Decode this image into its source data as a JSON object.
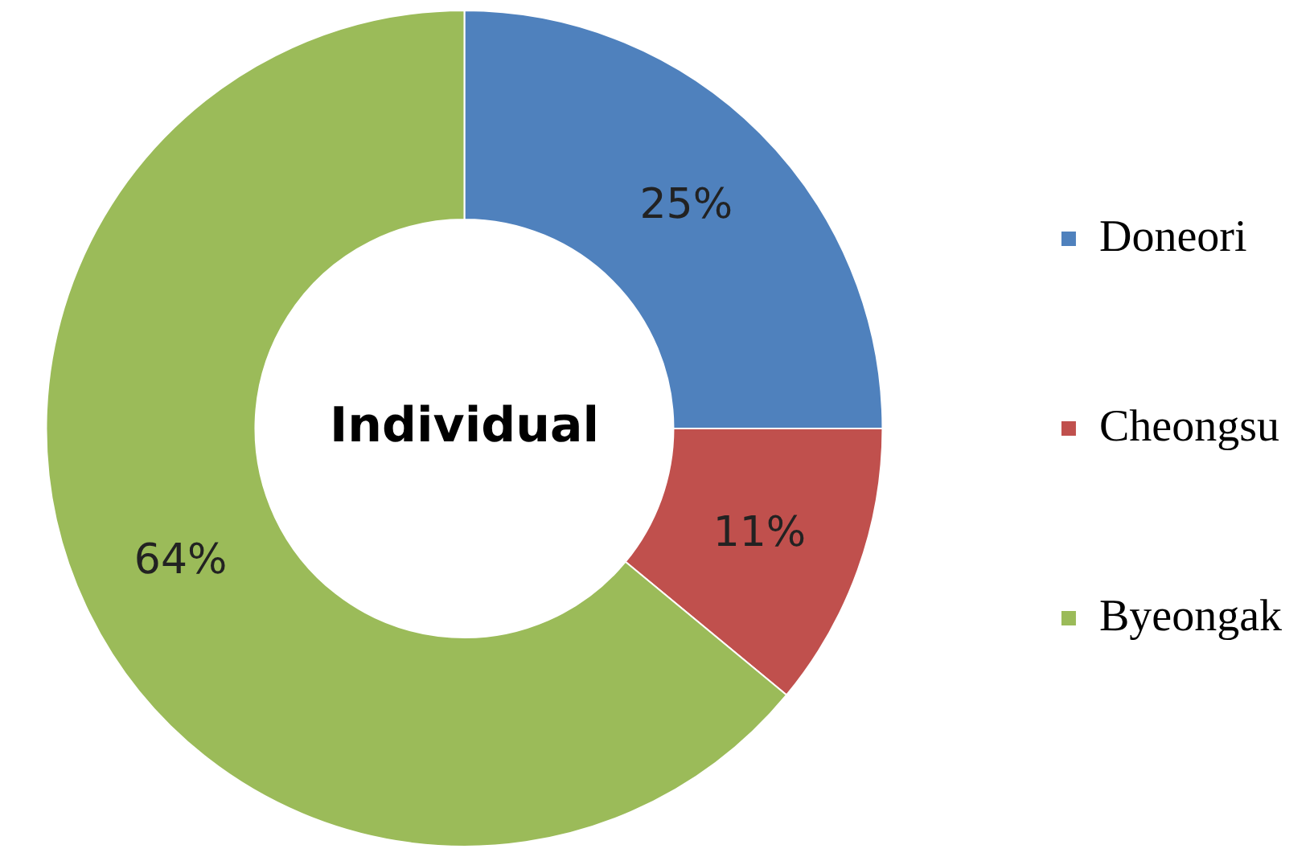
{
  "chart_data": {
    "type": "donut",
    "title": "Individual",
    "categories": [
      "Doneori",
      "Cheongsu",
      "Byeongak"
    ],
    "values": [
      25,
      11,
      64
    ],
    "colors": [
      "#4f81bd",
      "#c0504d",
      "#9bbb59"
    ],
    "value_labels": [
      "25%",
      "11%",
      "64%"
    ],
    "legend": "right"
  }
}
